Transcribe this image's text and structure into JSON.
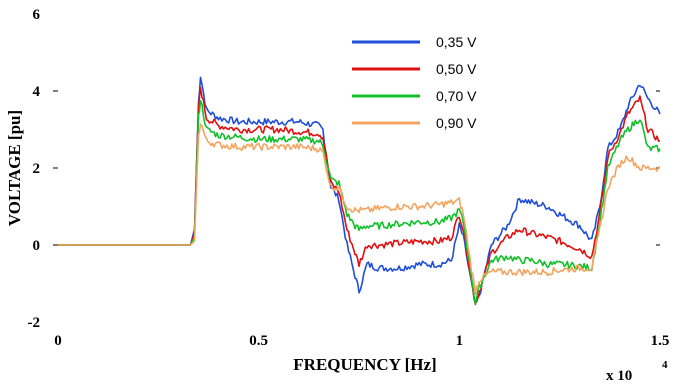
{
  "chart_data": {
    "type": "line",
    "xlabel": "FREQUENCY [Hz]",
    "ylabel": "VOLTAGE [pu]",
    "x_multiplier_label": "x 10",
    "x_multiplier_exp": "4",
    "xlim": [
      0,
      1.5
    ],
    "ylim": [
      -2,
      6
    ],
    "x_ticks": [
      {
        "value": 0,
        "label": "0"
      },
      {
        "value": 0.5,
        "label": "0.5"
      },
      {
        "value": 1,
        "label": "1"
      },
      {
        "value": 1.5,
        "label": "1.5"
      }
    ],
    "y_ticks": [
      {
        "value": -2,
        "label": "-2"
      },
      {
        "value": 0,
        "label": "0"
      },
      {
        "value": 2,
        "label": "2"
      },
      {
        "value": 4,
        "label": "4"
      },
      {
        "value": 6,
        "label": "6"
      }
    ],
    "grid": false,
    "legend_position": "top-center",
    "series": [
      {
        "name": "0,35 V",
        "color": "#1f4ed8",
        "x": [
          0,
          0.33,
          0.34,
          0.35,
          0.355,
          0.37,
          0.4,
          0.45,
          0.5,
          0.55,
          0.6,
          0.65,
          0.66,
          0.68,
          0.7,
          0.72,
          0.74,
          0.75,
          0.77,
          0.8,
          0.85,
          0.9,
          0.95,
          0.98,
          1.0,
          1.01,
          1.03,
          1.04,
          1.05,
          1.08,
          1.12,
          1.15,
          1.18,
          1.22,
          1.25,
          1.3,
          1.33,
          1.35,
          1.37,
          1.4,
          1.42,
          1.45,
          1.47,
          1.5
        ],
        "y": [
          0,
          0,
          0.4,
          3.7,
          4.4,
          3.5,
          3.3,
          3.2,
          3.2,
          3.2,
          3.2,
          3.1,
          3.0,
          1.5,
          1.2,
          0.0,
          -0.8,
          -1.2,
          -0.5,
          -0.6,
          -0.6,
          -0.5,
          -0.5,
          -0.4,
          0.5,
          0.2,
          -1.0,
          -1.6,
          -1.3,
          0.0,
          0.5,
          1.2,
          1.1,
          1.0,
          0.8,
          0.5,
          0.1,
          1.0,
          2.5,
          3.0,
          3.6,
          4.2,
          3.8,
          3.4
        ]
      },
      {
        "name": "0,50 V",
        "color": "#e01010",
        "x": [
          0,
          0.33,
          0.34,
          0.35,
          0.355,
          0.37,
          0.4,
          0.45,
          0.5,
          0.55,
          0.6,
          0.65,
          0.66,
          0.68,
          0.7,
          0.72,
          0.74,
          0.75,
          0.77,
          0.8,
          0.85,
          0.9,
          0.95,
          0.98,
          1.0,
          1.01,
          1.03,
          1.04,
          1.05,
          1.08,
          1.12,
          1.15,
          1.18,
          1.22,
          1.25,
          1.3,
          1.33,
          1.35,
          1.37,
          1.4,
          1.42,
          1.45,
          1.47,
          1.5
        ],
        "y": [
          0,
          0,
          0.3,
          3.5,
          4.1,
          3.3,
          3.1,
          3.0,
          3.0,
          3.0,
          2.95,
          2.9,
          2.8,
          1.6,
          1.4,
          0.4,
          -0.2,
          -0.5,
          0.0,
          0.0,
          0.05,
          0.1,
          0.1,
          0.2,
          0.8,
          0.4,
          -0.9,
          -1.5,
          -1.2,
          -0.2,
          0.2,
          0.4,
          0.3,
          0.2,
          0.1,
          -0.1,
          -0.3,
          0.8,
          2.3,
          2.9,
          3.4,
          3.8,
          3.0,
          2.7
        ]
      },
      {
        "name": "0,70 V",
        "color": "#12c02a",
        "x": [
          0,
          0.33,
          0.34,
          0.35,
          0.355,
          0.37,
          0.4,
          0.45,
          0.5,
          0.55,
          0.6,
          0.65,
          0.66,
          0.68,
          0.7,
          0.72,
          0.74,
          0.75,
          0.77,
          0.8,
          0.85,
          0.9,
          0.95,
          0.98,
          1.0,
          1.01,
          1.03,
          1.04,
          1.05,
          1.08,
          1.12,
          1.15,
          1.18,
          1.22,
          1.25,
          1.3,
          1.33,
          1.35,
          1.37,
          1.4,
          1.42,
          1.45,
          1.47,
          1.5
        ],
        "y": [
          0,
          0,
          0.2,
          3.3,
          3.8,
          3.0,
          2.85,
          2.8,
          2.75,
          2.75,
          2.75,
          2.7,
          2.6,
          1.7,
          1.6,
          0.8,
          0.5,
          0.4,
          0.5,
          0.5,
          0.55,
          0.6,
          0.6,
          0.7,
          0.9,
          0.6,
          -0.8,
          -1.5,
          -1.1,
          -0.4,
          -0.3,
          -0.4,
          -0.4,
          -0.5,
          -0.5,
          -0.55,
          -0.6,
          0.6,
          2.0,
          2.7,
          3.0,
          3.3,
          2.5,
          2.5
        ]
      },
      {
        "name": "0,90 V",
        "color": "#f4a460",
        "x": [
          0,
          0.33,
          0.34,
          0.35,
          0.355,
          0.37,
          0.4,
          0.45,
          0.5,
          0.55,
          0.6,
          0.65,
          0.66,
          0.68,
          0.7,
          0.72,
          0.74,
          0.75,
          0.77,
          0.8,
          0.85,
          0.9,
          0.95,
          0.98,
          1.0,
          1.01,
          1.03,
          1.04,
          1.05,
          1.08,
          1.12,
          1.15,
          1.18,
          1.22,
          1.25,
          1.3,
          1.33,
          1.35,
          1.37,
          1.4,
          1.42,
          1.45,
          1.47,
          1.5
        ],
        "y": [
          0,
          0,
          0.1,
          2.8,
          3.2,
          2.7,
          2.6,
          2.55,
          2.55,
          2.55,
          2.55,
          2.5,
          2.4,
          1.5,
          1.5,
          1.0,
          0.9,
          0.9,
          0.9,
          0.95,
          1.0,
          1.0,
          1.05,
          1.1,
          1.15,
          0.8,
          -0.6,
          -1.2,
          -0.9,
          -0.7,
          -0.7,
          -0.7,
          -0.7,
          -0.7,
          -0.65,
          -0.6,
          -0.6,
          0.4,
          1.5,
          2.1,
          2.3,
          2.0,
          2.0,
          2.0
        ]
      }
    ]
  }
}
